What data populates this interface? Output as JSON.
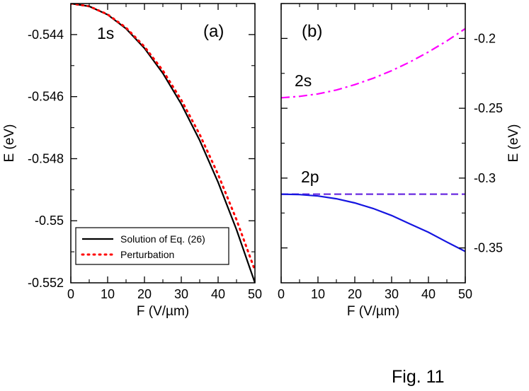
{
  "chart_data": [
    {
      "type": "line",
      "panel_label": "(a)",
      "xlabel": "F (V/µm)",
      "ylabel": "E (eV)",
      "xlim": [
        0,
        50
      ],
      "ylim": [
        -0.552,
        -0.543
      ],
      "xticks": [
        0,
        10,
        20,
        30,
        40,
        50
      ],
      "xtick_labels": [
        "0",
        "10",
        "20",
        "30",
        "40",
        "50"
      ],
      "yticks": [
        -0.552,
        -0.55,
        -0.548,
        -0.546,
        -0.544
      ],
      "ytick_labels": [
        "-0.552",
        "-0.55",
        "-0.548",
        "-0.546",
        "-0.544"
      ],
      "annotations": [
        {
          "text": "1s",
          "x": 7,
          "y": -0.544
        }
      ],
      "legend": {
        "position": "bottom-left",
        "entries": [
          "Solution of Eq. (26)",
          "Perturbation"
        ]
      },
      "series": [
        {
          "name": "Solution of Eq. (26)",
          "color": "#000000",
          "style": "solid",
          "x": [
            0,
            5,
            10,
            15,
            20,
            25,
            30,
            35,
            40,
            45,
            50
          ],
          "y": [
            -0.543,
            -0.54309,
            -0.54336,
            -0.54381,
            -0.54444,
            -0.54525,
            -0.54624,
            -0.54741,
            -0.54876,
            -0.55029,
            -0.552
          ]
        },
        {
          "name": "Perturbation",
          "color": "#ff0000",
          "style": "dotted",
          "x": [
            0,
            5,
            10,
            15,
            20,
            25,
            30,
            35,
            40,
            45,
            50
          ],
          "y": [
            -0.543,
            -0.54309,
            -0.54335,
            -0.54378,
            -0.54439,
            -0.54516,
            -0.54611,
            -0.54722,
            -0.54851,
            -0.54997,
            -0.5516
          ]
        }
      ]
    },
    {
      "type": "line",
      "panel_label": "(b)",
      "xlabel": "F (V/µm)",
      "ylabel": "E (eV)",
      "ylabel_side": "right",
      "xlim": [
        0,
        50
      ],
      "ylim": [
        -0.375,
        -0.175
      ],
      "xticks": [
        0,
        10,
        20,
        30,
        40,
        50
      ],
      "xtick_labels": [
        "0",
        "10",
        "20",
        "30",
        "40",
        "50"
      ],
      "yticks": [
        -0.35,
        -0.3,
        -0.25,
        -0.2
      ],
      "ytick_labels": [
        "-0.35",
        "-0.3",
        "-0.25",
        "-0.2"
      ],
      "annotations": [
        {
          "text": "2s",
          "x": 4,
          "y": -0.232
        },
        {
          "text": "2p",
          "x": 6,
          "y": -0.298
        }
      ],
      "series": [
        {
          "name": "2s",
          "color": "#ff00ff",
          "style": "dash-dot",
          "x": [
            0,
            5,
            10,
            15,
            20,
            25,
            30,
            35,
            40,
            45,
            50
          ],
          "y": [
            -0.2425,
            -0.2415,
            -0.2397,
            -0.2369,
            -0.2331,
            -0.2285,
            -0.2231,
            -0.2168,
            -0.2097,
            -0.2018,
            -0.193
          ]
        },
        {
          "name": "2p-dashed",
          "color": "#6a2ce0",
          "style": "dashed",
          "x": [
            0,
            50
          ],
          "y": [
            -0.3115,
            -0.3115
          ]
        },
        {
          "name": "2p-solid",
          "color": "#1515e0",
          "style": "solid",
          "x": [
            0,
            5,
            10,
            15,
            20,
            25,
            30,
            35,
            40,
            45,
            50
          ],
          "y": [
            -0.3115,
            -0.3118,
            -0.3128,
            -0.3148,
            -0.3178,
            -0.3218,
            -0.3268,
            -0.3328,
            -0.3388,
            -0.3458,
            -0.3525
          ]
        }
      ]
    }
  ],
  "caption": "Fig. 11"
}
